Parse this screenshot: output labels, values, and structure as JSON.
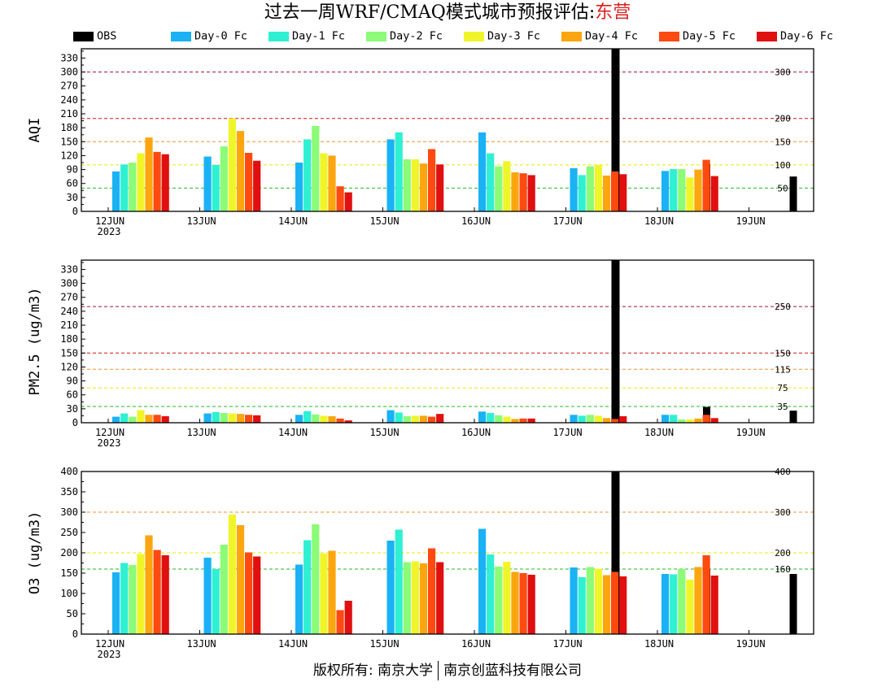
{
  "title": {
    "main": "过去一周WRF/CMAQ模式城市预报评估:",
    "city": "东营"
  },
  "footer": {
    "left": "版权所有: 南京大学",
    "right": "南京创蓝科技有限公司"
  },
  "series_names": [
    "OBS",
    "Day-0 Fc",
    "Day-1 Fc",
    "Day-2 Fc",
    "Day-3 Fc",
    "Day-4 Fc",
    "Day-5 Fc",
    "Day-6 Fc"
  ],
  "series_colors": [
    "#000000",
    "#1ab2f5",
    "#2ff0d2",
    "#8cfb78",
    "#f0f52a",
    "#fba50f",
    "#fc4a11",
    "#e01010"
  ],
  "chart_data": [
    {
      "type": "bar",
      "ylabel": "AQI",
      "ylim": [
        0,
        350
      ],
      "yticks": [
        0,
        30,
        60,
        90,
        120,
        150,
        180,
        210,
        240,
        270,
        300,
        330
      ],
      "categories": [
        "12JUN",
        "13JUN",
        "14JUN",
        "15JUN",
        "16JUN",
        "17JUN",
        "18JUN",
        "19JUN"
      ],
      "year_label": "2023",
      "thresholds": [
        {
          "value": 50,
          "label": "50",
          "color": "#22bb22"
        },
        {
          "value": 100,
          "label": "100",
          "color": "#e8e800"
        },
        {
          "value": 150,
          "label": "150",
          "color": "#f09030"
        },
        {
          "value": 200,
          "label": "200",
          "color": "#d01010"
        },
        {
          "value": 300,
          "label": "300",
          "color": "#a01040"
        }
      ],
      "series": [
        {
          "name": "OBS",
          "values": [
            null,
            null,
            null,
            null,
            null,
            350,
            102,
            75
          ]
        },
        {
          "name": "Day-0 Fc",
          "values": [
            86,
            118,
            105,
            155,
            170,
            93,
            87,
            null
          ]
        },
        {
          "name": "Day-1 Fc",
          "values": [
            101,
            100,
            155,
            170,
            125,
            78,
            91,
            null
          ]
        },
        {
          "name": "Day-2 Fc",
          "values": [
            105,
            140,
            184,
            112,
            97,
            97,
            91,
            null
          ]
        },
        {
          "name": "Day-3 Fc",
          "values": [
            125,
            200,
            125,
            112,
            108,
            100,
            73,
            null
          ]
        },
        {
          "name": "Day-4 Fc",
          "values": [
            159,
            173,
            120,
            103,
            84,
            77,
            90,
            null
          ]
        },
        {
          "name": "Day-5 Fc",
          "values": [
            128,
            126,
            54,
            134,
            82,
            86,
            111,
            null
          ]
        },
        {
          "name": "Day-6 Fc",
          "values": [
            123,
            109,
            41,
            101,
            78,
            80,
            76,
            null
          ]
        }
      ]
    },
    {
      "type": "bar",
      "ylabel": "PM2.5 (ug/m3)",
      "ylim": [
        0,
        350
      ],
      "yticks": [
        0,
        30,
        60,
        90,
        120,
        150,
        180,
        210,
        240,
        270,
        300,
        330
      ],
      "categories": [
        "12JUN",
        "13JUN",
        "14JUN",
        "15JUN",
        "16JUN",
        "17JUN",
        "18JUN",
        "19JUN"
      ],
      "year_label": "2023",
      "thresholds": [
        {
          "value": 35,
          "label": "35",
          "color": "#22bb22"
        },
        {
          "value": 75,
          "label": "75",
          "color": "#e8e800"
        },
        {
          "value": 115,
          "label": "115",
          "color": "#f09030"
        },
        {
          "value": 150,
          "label": "150",
          "color": "#d01010"
        },
        {
          "value": 250,
          "label": "250",
          "color": "#a01040"
        }
      ],
      "series": [
        {
          "name": "OBS",
          "values": [
            null,
            null,
            null,
            null,
            null,
            350,
            34,
            26
          ]
        },
        {
          "name": "Day-0 Fc",
          "values": [
            13,
            20,
            17,
            27,
            24,
            17,
            17,
            null
          ]
        },
        {
          "name": "Day-1 Fc",
          "values": [
            20,
            23,
            25,
            22,
            21,
            15,
            17,
            null
          ]
        },
        {
          "name": "Day-2 Fc",
          "values": [
            13,
            21,
            18,
            14,
            16,
            17,
            7,
            null
          ]
        },
        {
          "name": "Day-3 Fc",
          "values": [
            27,
            20,
            15,
            15,
            13,
            15,
            7,
            null
          ]
        },
        {
          "name": "Day-4 Fc",
          "values": [
            17,
            19,
            14,
            15,
            8,
            10,
            9,
            null
          ]
        },
        {
          "name": "Day-5 Fc",
          "values": [
            17,
            17,
            9,
            13,
            9,
            8,
            17,
            null
          ]
        },
        {
          "name": "Day-6 Fc",
          "values": [
            14,
            16,
            5,
            19,
            9,
            14,
            10,
            null
          ]
        }
      ]
    },
    {
      "type": "bar",
      "ylabel": "O3 (ug/m3)",
      "ylim": [
        0,
        400
      ],
      "yticks": [
        0,
        50,
        100,
        150,
        200,
        250,
        300,
        350,
        400
      ],
      "categories": [
        "12JUN",
        "13JUN",
        "14JUN",
        "15JUN",
        "16JUN",
        "17JUN",
        "18JUN",
        "19JUN"
      ],
      "year_label": "2023",
      "thresholds": [
        {
          "value": 160,
          "label": "160",
          "color": "#22bb22"
        },
        {
          "value": 200,
          "label": "200",
          "color": "#e8e800"
        },
        {
          "value": 300,
          "label": "300",
          "color": "#f09030"
        },
        {
          "value": 400,
          "label": "400",
          "color": "#d01010"
        }
      ],
      "series": [
        {
          "name": "OBS",
          "values": [
            null,
            null,
            null,
            null,
            null,
            400,
            161,
            148
          ]
        },
        {
          "name": "Day-0 Fc",
          "values": [
            152,
            188,
            171,
            230,
            259,
            164,
            148,
            null
          ]
        },
        {
          "name": "Day-1 Fc",
          "values": [
            175,
            160,
            231,
            257,
            196,
            140,
            147,
            null
          ]
        },
        {
          "name": "Day-2 Fc",
          "values": [
            170,
            220,
            270,
            177,
            166,
            165,
            160,
            null
          ]
        },
        {
          "name": "Day-3 Fc",
          "values": [
            197,
            294,
            198,
            179,
            178,
            161,
            134,
            null
          ]
        },
        {
          "name": "Day-4 Fc",
          "values": [
            243,
            268,
            205,
            174,
            153,
            145,
            165,
            null
          ]
        },
        {
          "name": "Day-5 Fc",
          "values": [
            207,
            201,
            59,
            211,
            150,
            153,
            194,
            null
          ]
        },
        {
          "name": "Day-6 Fc",
          "values": [
            194,
            191,
            82,
            177,
            146,
            142,
            144,
            null
          ]
        }
      ]
    }
  ]
}
